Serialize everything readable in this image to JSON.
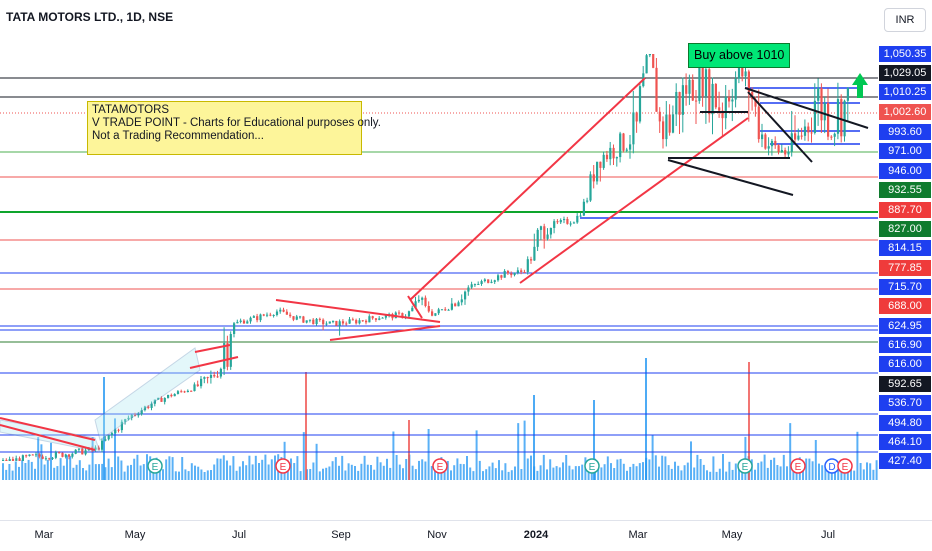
{
  "symbol_title": "TATA MOTORS LTD., 1D, NSE",
  "currency": "INR",
  "note": {
    "line1": "TATAMOTORS",
    "line2": "V TRADE POINT - Charts for Educational purposes only.",
    "line3": "Not a Trading Recommendation..."
  },
  "buy_label": "Buy above 1010",
  "chart_data": {
    "type": "candlestick",
    "title": "TATA MOTORS LTD., 1D, NSE",
    "xlabel": "",
    "ylabel": "",
    "time_axis_labels": [
      "Mar",
      "May",
      "Jul",
      "Sep",
      "Nov",
      "2024",
      "Mar",
      "May",
      "Jul"
    ],
    "price_scale_labels": [
      {
        "value": "1,050.35",
        "bg": "#1e3ff0"
      },
      {
        "value": "1,029.05",
        "bg": "#131722"
      },
      {
        "value": "1,010.25",
        "bg": "#1e3ff0"
      },
      {
        "value": "1,002.60",
        "bg": "#ef5350"
      },
      {
        "value": "993.60",
        "bg": "#1e3ff0"
      },
      {
        "value": "971.00",
        "bg": "#1e3ff0"
      },
      {
        "value": "946.00",
        "bg": "#1e3ff0"
      },
      {
        "value": "932.55",
        "bg": "#0f7b2e"
      },
      {
        "value": "887.70",
        "bg": "#ef3b3b"
      },
      {
        "value": "827.00",
        "bg": "#0f7b2e"
      },
      {
        "value": "814.15",
        "bg": "#1e3ff0"
      },
      {
        "value": "777.85",
        "bg": "#ef3b3b"
      },
      {
        "value": "715.70",
        "bg": "#1e3ff0"
      },
      {
        "value": "688.00",
        "bg": "#ef3b3b"
      },
      {
        "value": "624.95",
        "bg": "#1e3ff0"
      },
      {
        "value": "616.90",
        "bg": "#1e3ff0"
      },
      {
        "value": "616.00",
        "bg": "#1e3ff0"
      },
      {
        "value": "592.65",
        "bg": "#131722"
      },
      {
        "value": "536.70",
        "bg": "#1e3ff0"
      },
      {
        "value": "494.80",
        "bg": "#1e3ff0"
      },
      {
        "value": "464.10",
        "bg": "#1e3ff0"
      },
      {
        "value": "427.40",
        "bg": "#1e3ff0"
      }
    ],
    "last_price": 1002.6,
    "buy_level": 1010,
    "horizontal_levels": [
      {
        "price": 1029.05,
        "color": "#131722"
      },
      {
        "price": 1010.25,
        "color": "#131722"
      },
      {
        "price": 1002.6,
        "color": "#ef5350"
      },
      {
        "price": 971.0,
        "color": "#4caf50"
      },
      {
        "price": 946.0,
        "color": "#ef5350"
      },
      {
        "price": 887.7,
        "color": "#0ea52c"
      },
      {
        "price": 827.0,
        "color": "#ef5350"
      },
      {
        "price": 777.85,
        "color": "#1e3ff0"
      },
      {
        "price": 715.7,
        "color": "#ef5350"
      },
      {
        "price": 624.95,
        "color": "#1e3ff0"
      },
      {
        "price": 616.9,
        "color": "#1e3ff0"
      },
      {
        "price": 592.65,
        "color": "#2e7d32"
      },
      {
        "price": 536.7,
        "color": "#1e3ff0"
      },
      {
        "price": 494.8,
        "color": "#1e3ff0"
      },
      {
        "price": 464.1,
        "color": "#1e3ff0"
      },
      {
        "price": 427.4,
        "color": "#1e3ff0"
      }
    ],
    "event_markers": [
      "E",
      "E",
      "E",
      "E",
      "E",
      "E",
      "D",
      "E"
    ],
    "colors": {
      "up": "#26a69a",
      "down": "#ef5350",
      "volume": "#2196f3",
      "trend_red": "#f23645",
      "trend_black": "#131722"
    }
  }
}
